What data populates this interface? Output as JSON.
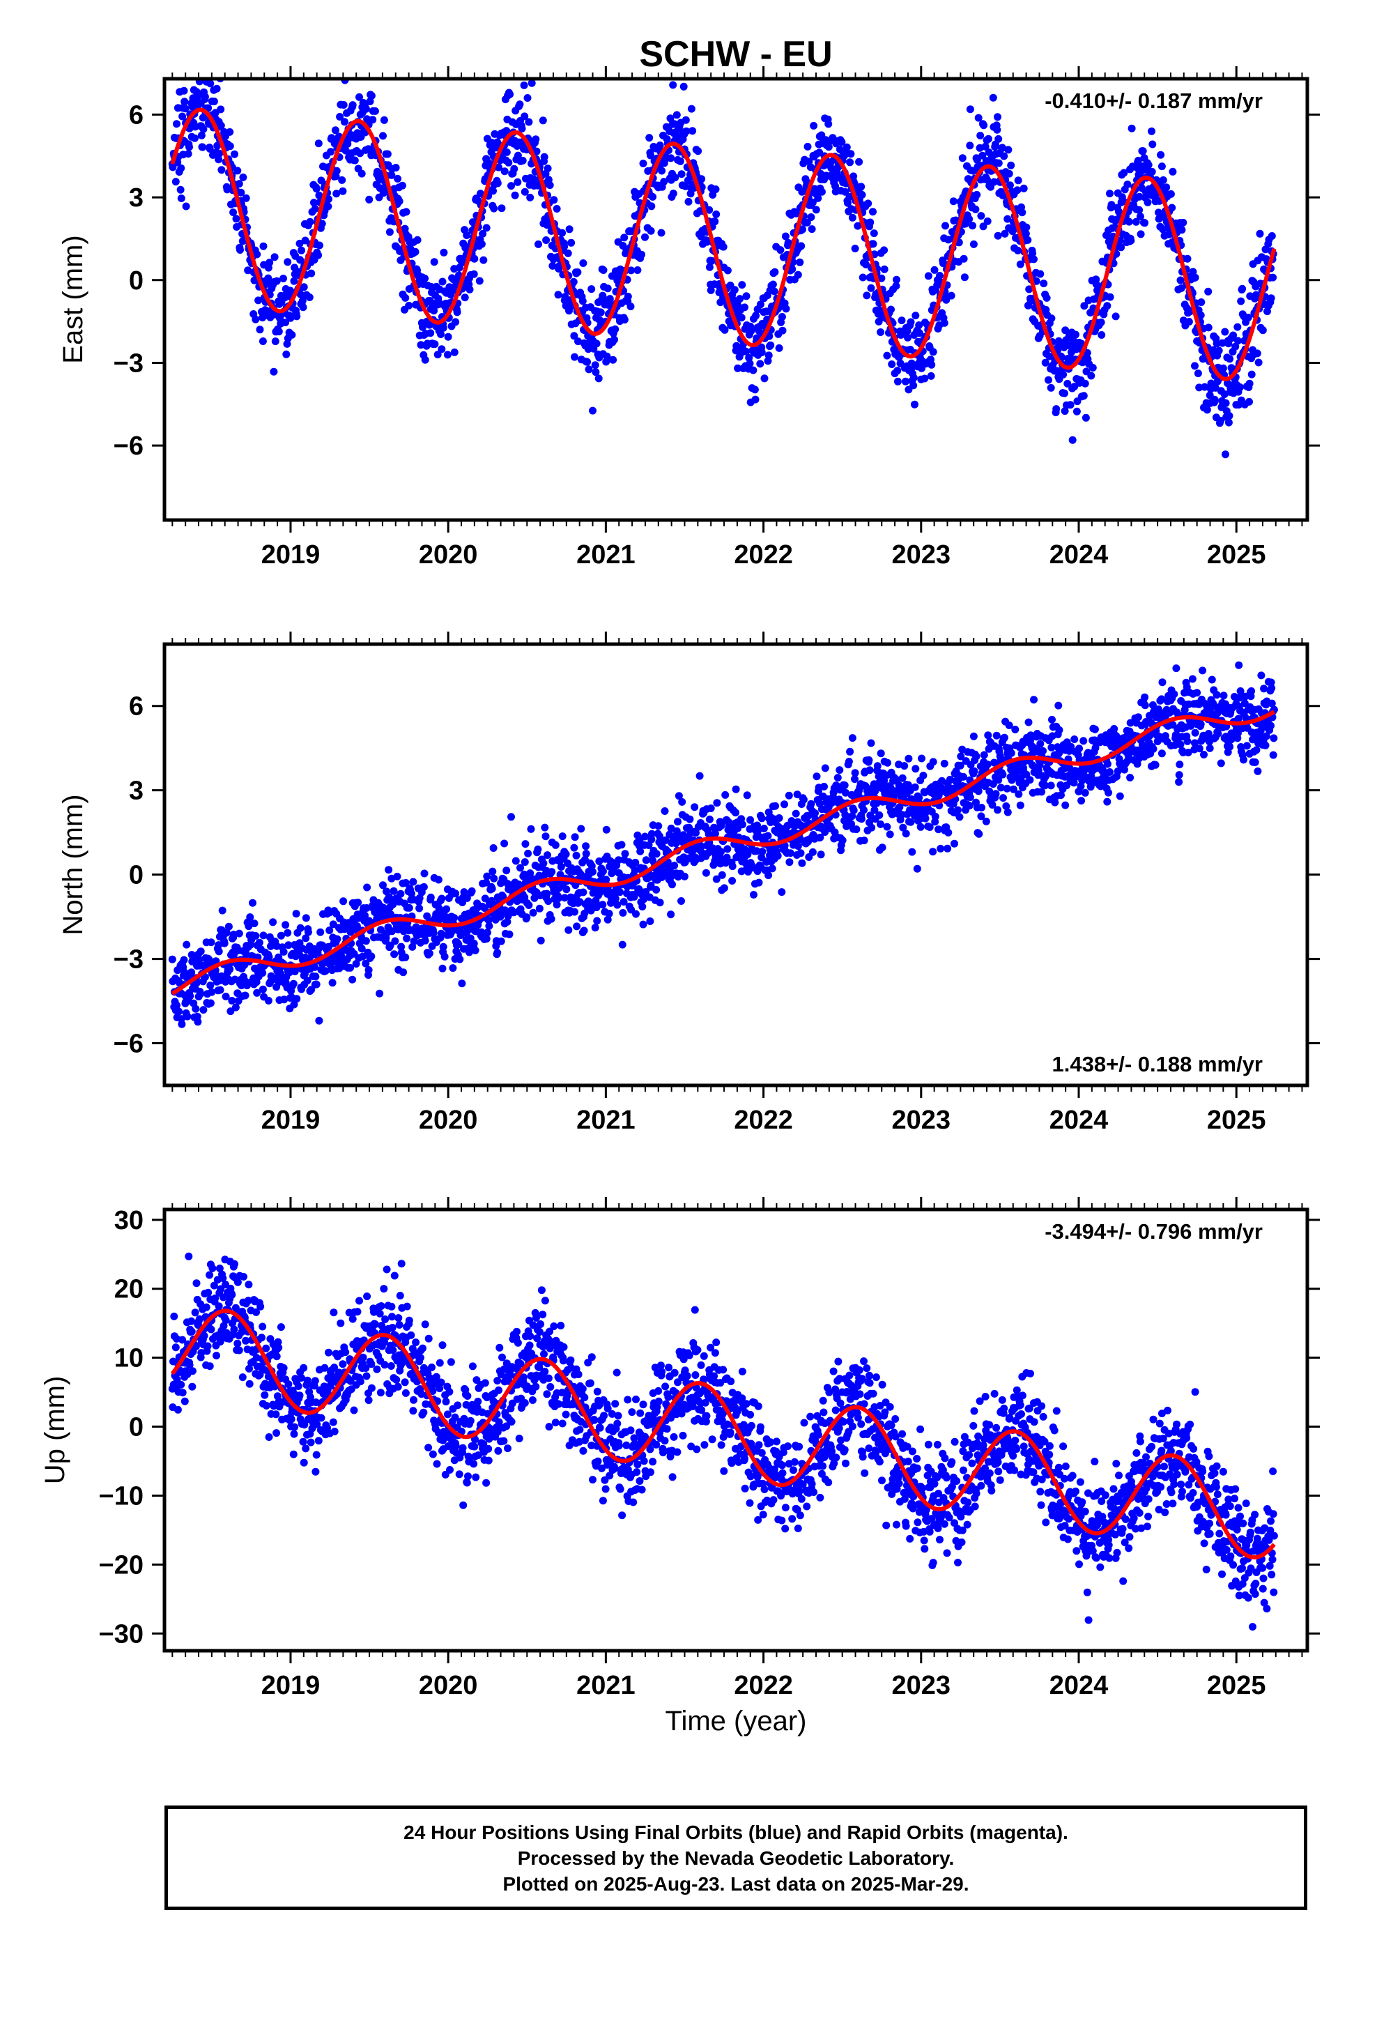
{
  "title": "SCHW - EU",
  "xlabel": "Time (year)",
  "colors": {
    "points": "#0000ff",
    "fit": "#ff0000",
    "axes": "#000000"
  },
  "caption": {
    "line1": "24 Hour Positions Using Final Orbits (blue) and Rapid Orbits (magenta).",
    "line2": "Processed by the Nevada Geodetic Laboratory.",
    "line3": "Plotted on 2025-Aug-23. Last data on 2025-Mar-29."
  },
  "chart_data": [
    {
      "type": "scatter",
      "component": "east",
      "ylabel": "East (mm)",
      "rate_text": "-0.410+/- 0.187 mm/yr",
      "rate_position": "top-right",
      "xlim": [
        2018.2,
        2025.45
      ],
      "ylim": [
        -8.7,
        7.3
      ],
      "xticks": [
        2019,
        2020,
        2021,
        2022,
        2023,
        2024,
        2025
      ],
      "yticks": [
        -6,
        -3,
        0,
        3,
        6
      ],
      "ytick_labels": [
        "−6",
        "−3",
        "0",
        "3",
        "6"
      ],
      "series": [
        {
          "name": "",
          "style": "points",
          "x_start": 2018.25,
          "x_end": 2025.24,
          "trend_mm_per_yr": -0.41,
          "offset_mm": 2.7,
          "annual_amplitude_mm": 3.55,
          "annual_phase_yr": 0.43,
          "scatter_sd_mm": 0.9
        },
        {
          "name": "",
          "style": "fit-line",
          "x_start": 2018.25,
          "x_end": 2025.24
        }
      ],
      "grid": false
    },
    {
      "type": "scatter",
      "component": "north",
      "ylabel": "North (mm)",
      "rate_text": "1.438+/- 0.188 mm/yr",
      "rate_position": "bottom-right",
      "xlim": [
        2018.2,
        2025.45
      ],
      "ylim": [
        -7.5,
        8.2
      ],
      "xticks": [
        2019,
        2020,
        2021,
        2022,
        2023,
        2024,
        2025
      ],
      "yticks": [
        -6,
        -3,
        0,
        3,
        6
      ],
      "ytick_labels": [
        "−6",
        "−3",
        "0",
        "3",
        "6"
      ],
      "series": [
        {
          "name": "",
          "style": "points",
          "x_start": 2018.25,
          "x_end": 2025.24,
          "trend_mm_per_yr": 1.438,
          "offset_mm": -4.0,
          "annual_amplitude_mm": 0.4,
          "annual_phase_yr": 0.6,
          "scatter_sd_mm": 0.75
        },
        {
          "name": "",
          "style": "fit-line",
          "x_start": 2018.25,
          "x_end": 2025.24
        }
      ],
      "grid": false
    },
    {
      "type": "scatter",
      "component": "up",
      "ylabel": "Up (mm)",
      "rate_text": "-3.494+/- 0.796 mm/yr",
      "rate_position": "top-right",
      "xlim": [
        2018.2,
        2025.45
      ],
      "ylim": [
        -32.5,
        31.5
      ],
      "xticks": [
        2019,
        2020,
        2021,
        2022,
        2023,
        2024,
        2025
      ],
      "yticks": [
        -30,
        -20,
        -10,
        0,
        10,
        20,
        30
      ],
      "ytick_labels": [
        "−30",
        "−20",
        "−10",
        "0",
        "10",
        "20",
        "30"
      ],
      "series": [
        {
          "name": "",
          "style": "points",
          "x_start": 2018.25,
          "x_end": 2025.24,
          "trend_mm_per_yr": -3.494,
          "offset_mm": 11.5,
          "annual_amplitude_mm": 6.5,
          "annual_phase_yr": 0.6,
          "scatter_sd_mm": 3.8
        },
        {
          "name": "",
          "style": "fit-line",
          "x_start": 2018.25,
          "x_end": 2025.24
        }
      ],
      "grid": false
    }
  ]
}
